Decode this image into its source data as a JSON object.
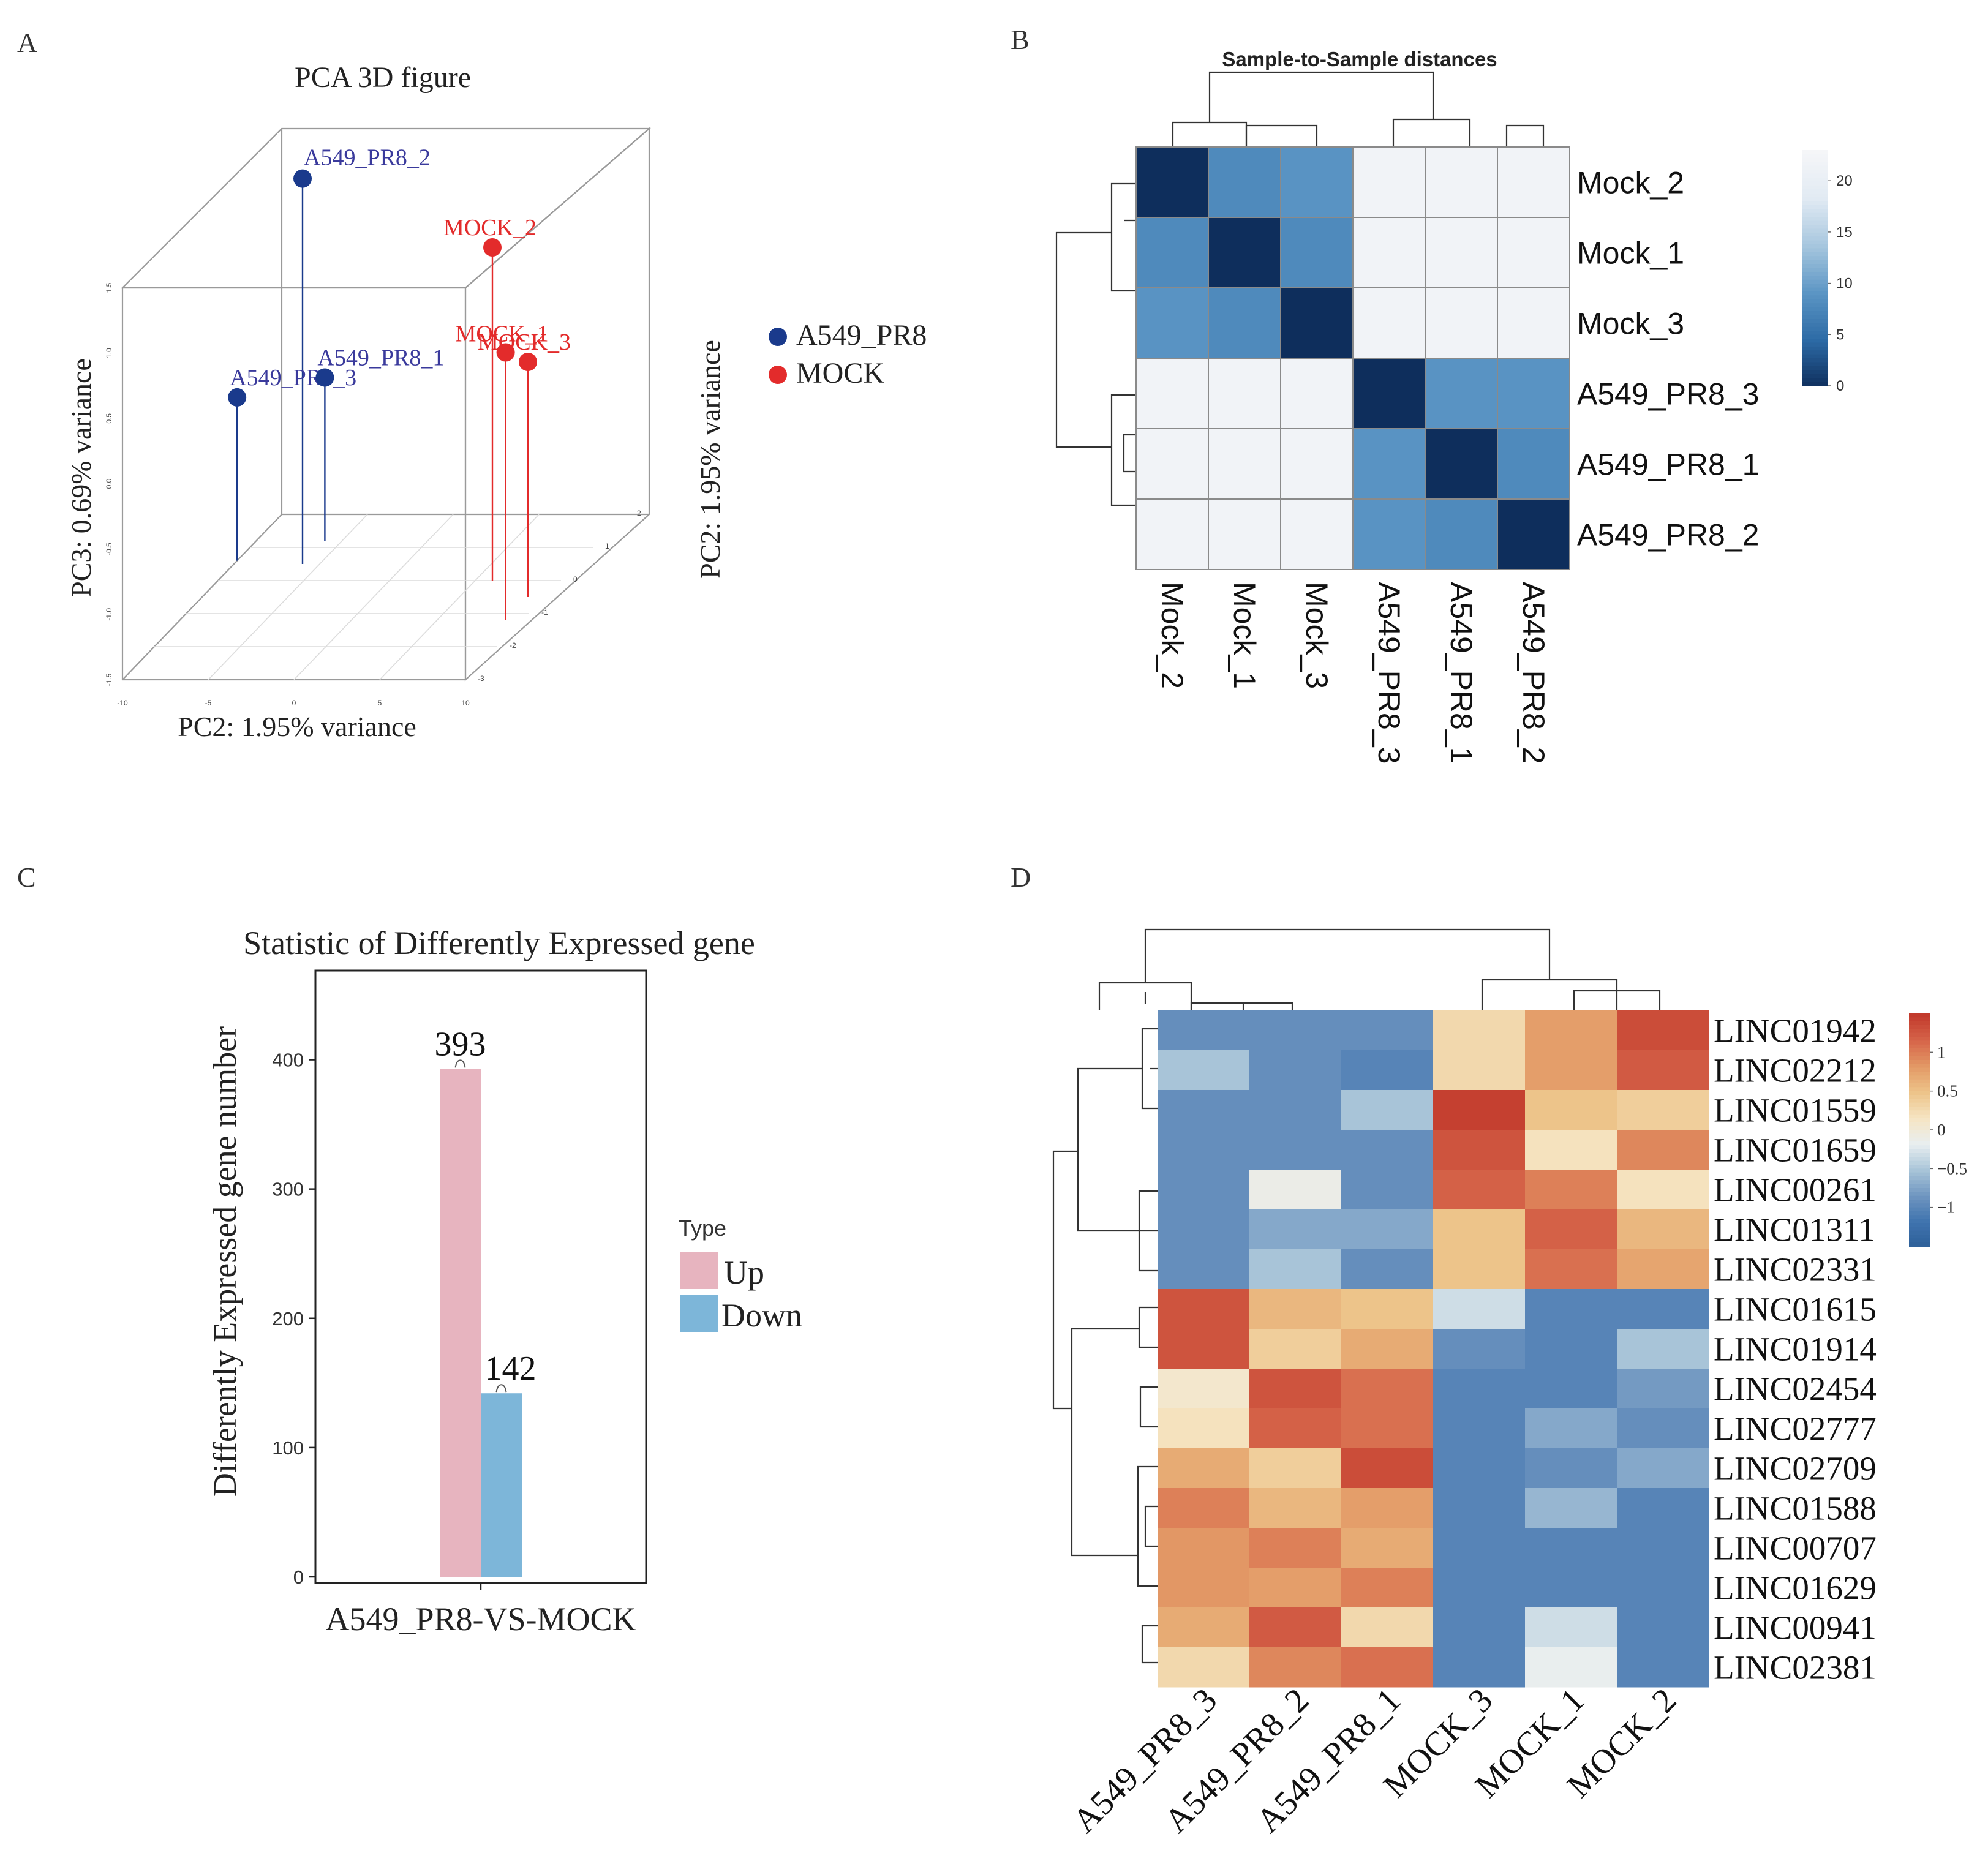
{
  "colors": {
    "blue": "#1a3a8c",
    "red": "#e32b2b",
    "label_blue": "#3a3a9c",
    "up": "#e7b4bf",
    "down": "#7db6d9"
  },
  "panels": {
    "a": "A",
    "b": "B",
    "c": "C",
    "d": "D"
  },
  "chart_data": [
    {
      "id": "A",
      "type": "scatter",
      "title": "PCA 3D figure",
      "xlabel": "PC2: 1.95% variance",
      "ylabel": "PC3: 0.69% variance",
      "zlabel": "PC2: 1.95% variance",
      "x_ticks": [
        "-10",
        "-5",
        "0",
        "5",
        "10"
      ],
      "y_ticks": [
        "-3",
        "-2",
        "-1",
        "0",
        "1",
        "2"
      ],
      "z_ticks": [
        "-1.5",
        "-1.0",
        "-0.5",
        "0.0",
        "0.5",
        "1.0",
        "1.5"
      ],
      "legend": [
        {
          "name": "A549_PR8",
          "color": "#1a3a8c"
        },
        {
          "name": "MOCK",
          "color": "#e32b2b"
        }
      ],
      "points": [
        {
          "label": "A549_PR8_2",
          "group": "A549_PR8",
          "x": -6,
          "y": 0.5,
          "z": 1.45
        },
        {
          "label": "A549_PR8_3",
          "group": "A549_PR8",
          "x": -10,
          "y": 0.6,
          "z": -0.25
        },
        {
          "label": "A549_PR8_1",
          "group": "A549_PR8",
          "x": -6,
          "y": 1.2,
          "z": -0.25
        },
        {
          "label": "MOCK_2",
          "group": "MOCK",
          "x": 6,
          "y": 0,
          "z": 1.05
        },
        {
          "label": "MOCK_1",
          "group": "MOCK",
          "x": 9,
          "y": -1.2,
          "z": 0.55
        },
        {
          "label": "MOCK_3",
          "group": "MOCK",
          "x": 9,
          "y": -0.5,
          "z": 0.3
        }
      ]
    },
    {
      "id": "B",
      "type": "heatmap",
      "title": "Sample-to-Sample distances",
      "rows": [
        "Mock_2",
        "Mock_1",
        "Mock_3",
        "A549_PR8_3",
        "A549_PR8_1",
        "A549_PR8_2"
      ],
      "cols": [
        "Mock_2",
        "Mock_1",
        "Mock_3",
        "A549_PR8_3",
        "A549_PR8_1",
        "A549_PR8_2"
      ],
      "values": [
        [
          0,
          8,
          9,
          22,
          22,
          22
        ],
        [
          8,
          0,
          8,
          22,
          22,
          22
        ],
        [
          9,
          8,
          0,
          22,
          22,
          22
        ],
        [
          22,
          22,
          22,
          0,
          9,
          9
        ],
        [
          22,
          22,
          22,
          9,
          0,
          8
        ],
        [
          22,
          22,
          22,
          9,
          8,
          0
        ]
      ],
      "scale_range": [
        0,
        23
      ],
      "scale_ticks": [
        "0",
        "5",
        "10",
        "15",
        "20"
      ],
      "scale_colors": [
        "#0e2e5c",
        "#2c6aa5",
        "#5b95c4",
        "#a6c6de",
        "#e1eaf3",
        "#f5f6f8"
      ]
    },
    {
      "id": "C",
      "type": "bar",
      "title": "Statistic of Differently Expressed gene",
      "xlabel": "A549_PR8-VS-MOCK",
      "ylabel": "Differently Expressed gene number",
      "categories": [
        "A549_PR8-VS-MOCK"
      ],
      "series": [
        {
          "name": "Up",
          "values": [
            393
          ]
        },
        {
          "name": "Down",
          "values": [
            142
          ]
        }
      ],
      "data_labels": [
        "393",
        "142"
      ],
      "ylim": [
        0,
        450
      ],
      "y_ticks": [
        "0",
        "100",
        "200",
        "300",
        "400"
      ],
      "legend_title": "Type"
    },
    {
      "id": "D",
      "type": "heatmap",
      "rows": [
        "LINC01942",
        "LINC02212",
        "LINC01559",
        "LINC01659",
        "LINC00261",
        "LINC01311",
        "LINC02331",
        "LINC01615",
        "LINC01914",
        "LINC02454",
        "LINC02777",
        "LINC02709",
        "LINC01588",
        "LINC00707",
        "LINC01629",
        "LINC00941",
        "LINC02381"
      ],
      "cols": [
        "A549_PR8_3",
        "A549_PR8_2",
        "A549_PR8_1",
        "MOCK_3",
        "MOCK_1",
        "MOCK_2"
      ],
      "values": [
        [
          -0.9,
          -0.9,
          -0.9,
          0.3,
          0.8,
          1.35
        ],
        [
          -0.5,
          -0.9,
          -1.0,
          0.3,
          0.8,
          1.25
        ],
        [
          -0.9,
          -0.9,
          -0.5,
          1.45,
          0.5,
          0.4
        ],
        [
          -0.9,
          -0.9,
          -0.9,
          1.3,
          0.2,
          0.95
        ],
        [
          -0.9,
          -0.1,
          -0.9,
          1.2,
          1.0,
          0.2
        ],
        [
          -0.9,
          -0.7,
          -0.7,
          0.5,
          1.2,
          0.6
        ],
        [
          -0.9,
          -0.5,
          -0.9,
          0.5,
          1.1,
          0.75
        ],
        [
          1.3,
          0.6,
          0.5,
          -0.3,
          -1.0,
          -1.0
        ],
        [
          1.3,
          0.4,
          0.7,
          -0.9,
          -1.0,
          -0.5
        ],
        [
          0.1,
          1.3,
          1.1,
          -1.0,
          -1.0,
          -0.8
        ],
        [
          0.2,
          1.2,
          1.1,
          -1.0,
          -0.7,
          -0.9
        ],
        [
          0.7,
          0.4,
          1.35,
          -1.0,
          -0.9,
          -0.7
        ],
        [
          1.0,
          0.6,
          0.8,
          -1.0,
          -0.6,
          -1.0
        ],
        [
          0.85,
          1.0,
          0.7,
          -1.0,
          -1.0,
          -1.0
        ],
        [
          0.85,
          0.8,
          1.0,
          -1.0,
          -1.0,
          -1.0
        ],
        [
          0.7,
          1.25,
          0.3,
          -1.0,
          -0.3,
          -1.0
        ],
        [
          0.3,
          0.95,
          1.1,
          -1.0,
          -0.15,
          -1.0
        ]
      ],
      "scale_range": [
        -1.5,
        1.5
      ],
      "scale_ticks": [
        "1",
        "0.5",
        "0",
        "−0.5",
        "−1"
      ],
      "scale_colors": [
        "#2d5f98",
        "#3f73ae",
        "#6e95c0",
        "#a8c4d8",
        "#e8eef0",
        "#f6e5c4",
        "#edc48a",
        "#e39a66",
        "#d6654a",
        "#c23a2c"
      ]
    }
  ]
}
